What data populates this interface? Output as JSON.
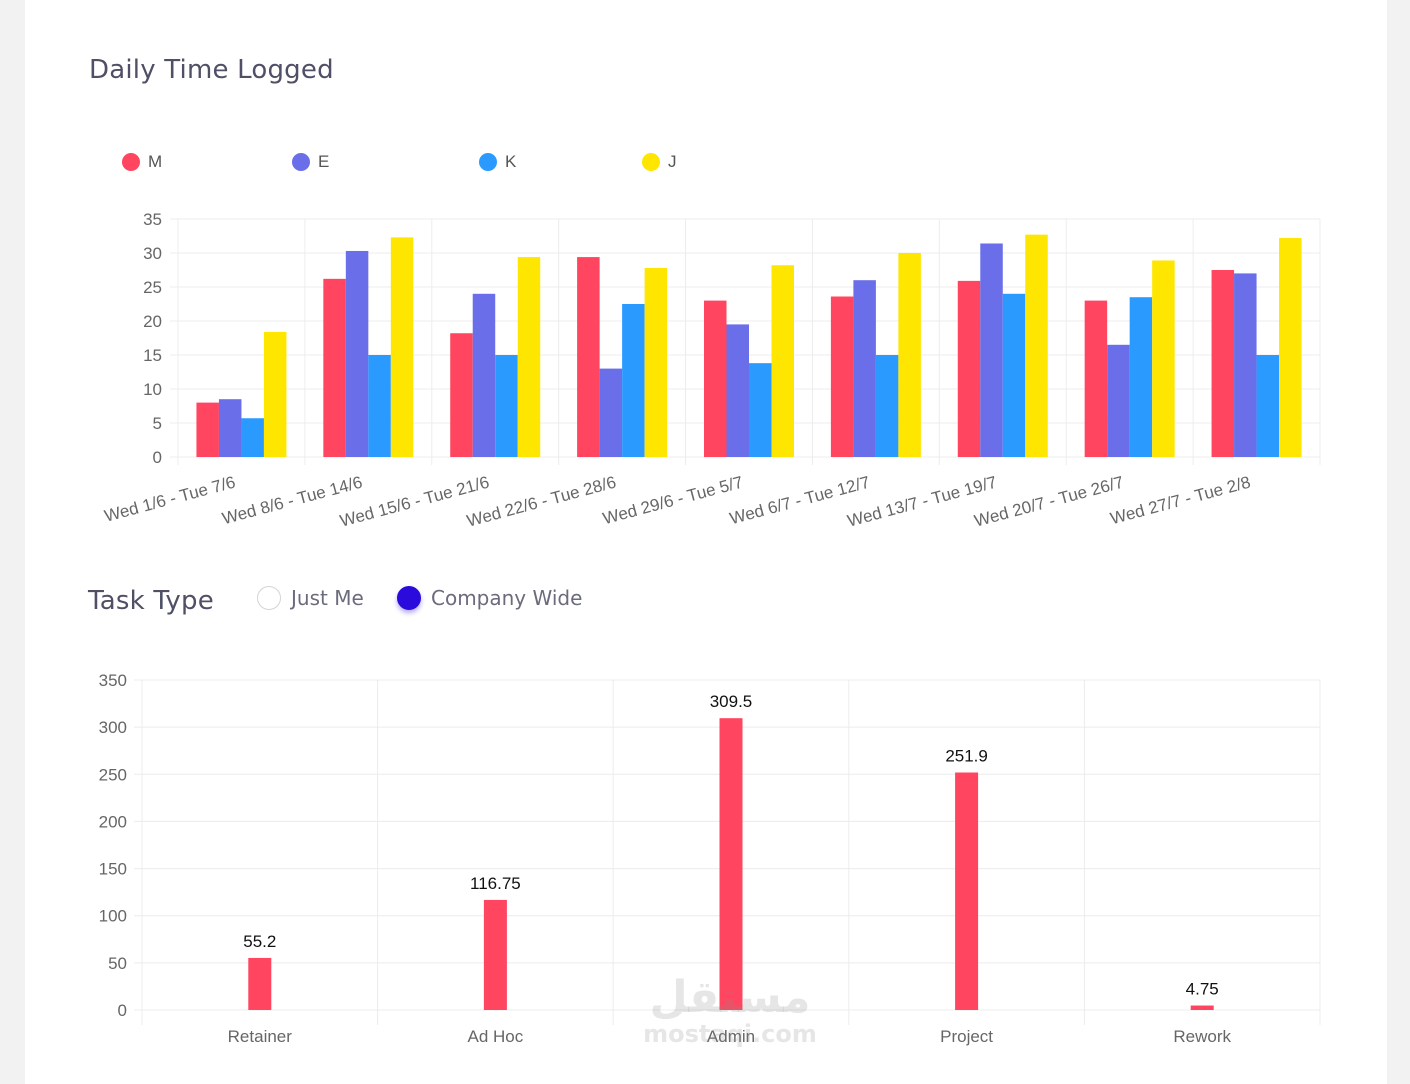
{
  "page": {
    "chart1_title": "Daily Time Logged",
    "chart2_title": "Task Type",
    "toggle": [
      {
        "label": "Just Me",
        "selected": false
      },
      {
        "label": "Company Wide",
        "selected": true
      }
    ],
    "watermark": {
      "main": "مستقل",
      "sub": "mostaqi.com"
    }
  },
  "chart_data": [
    {
      "type": "bar",
      "title": "Daily Time Logged",
      "categories": [
        "Wed 1/6 - Tue 7/6",
        "Wed 8/6 - Tue 14/6",
        "Wed 15/6 - Tue 21/6",
        "Wed 22/6 - Tue 28/6",
        "Wed 29/6 - Tue 5/7",
        "Wed 6/7 - Tue 12/7",
        "Wed 13/7 - Tue 19/7",
        "Wed 20/7 - Tue 26/7",
        "Wed 27/7 - Tue 2/8"
      ],
      "series": [
        {
          "name": "M",
          "color": "#ff4560",
          "values": [
            8,
            26.2,
            18.2,
            29.4,
            23,
            23.6,
            25.9,
            23,
            27.5
          ]
        },
        {
          "name": "E",
          "color": "#6a6ee8",
          "values": [
            8.5,
            30.3,
            24,
            13,
            19.5,
            26,
            31.4,
            16.5,
            27
          ]
        },
        {
          "name": "K",
          "color": "#2b9aff",
          "values": [
            5.7,
            15,
            15,
            22.5,
            13.8,
            15,
            24,
            23.5,
            15
          ]
        },
        {
          "name": "J",
          "color": "#ffe600",
          "values": [
            18.4,
            32.3,
            29.4,
            27.8,
            28.2,
            30,
            32.7,
            28.9,
            32.2
          ]
        }
      ],
      "ylim": [
        0,
        35
      ],
      "yticks": [
        0,
        5,
        10,
        15,
        20,
        25,
        30,
        35
      ],
      "grid": true,
      "legend": "top-left"
    },
    {
      "type": "bar",
      "title": "Task Type",
      "categories": [
        "Retainer",
        "Ad Hoc",
        "Admin",
        "Project",
        "Rework"
      ],
      "values": [
        55.2,
        116.75,
        309.5,
        251.9,
        4.75
      ],
      "value_labels": [
        "55.2",
        "116.75",
        "309.5",
        "251.9",
        "4.75"
      ],
      "color": "#ff4560",
      "ylim": [
        0,
        350
      ],
      "yticks": [
        0,
        50,
        100,
        150,
        200,
        250,
        300,
        350
      ],
      "grid": true
    }
  ]
}
